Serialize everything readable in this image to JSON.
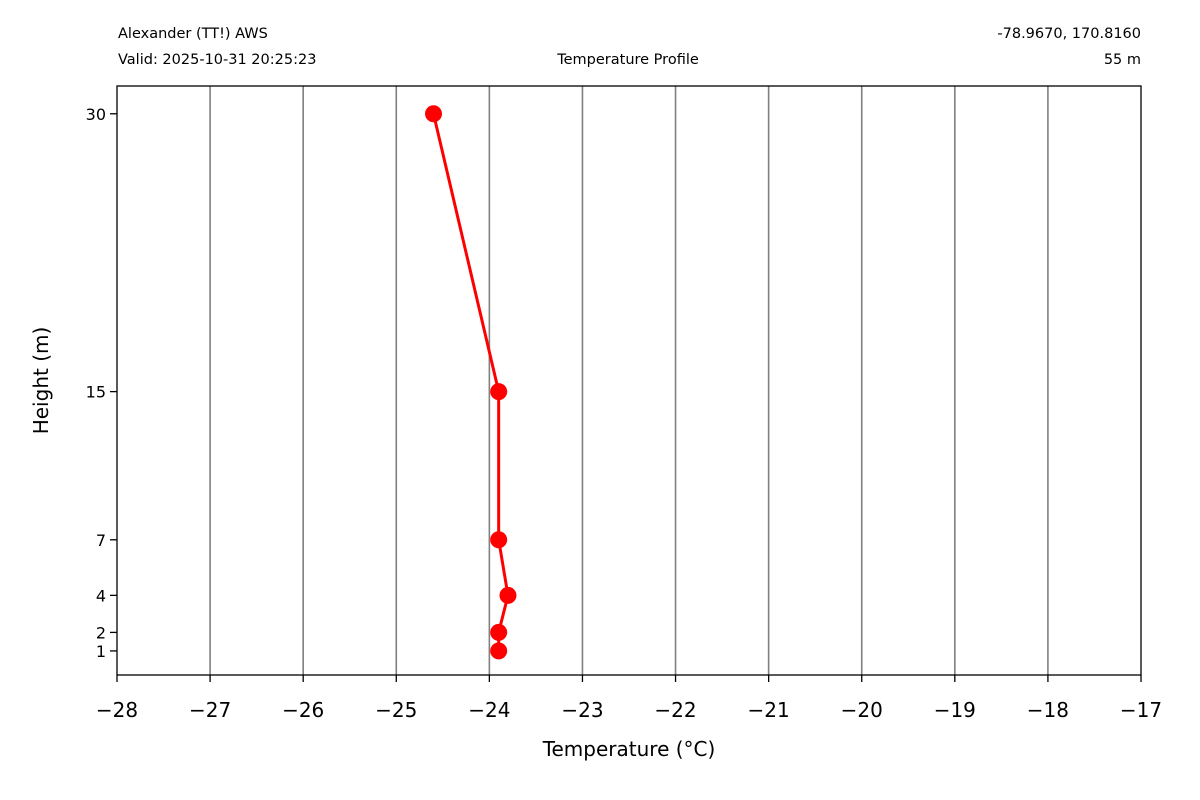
{
  "header": {
    "station": "Alexander (TT!) AWS",
    "valid": "Valid: 2025-10-31 20:25:23",
    "title": "Temperature Profile",
    "coordinates": "-78.9670, 170.8160",
    "elevation": "55 m"
  },
  "chart_data": {
    "type": "line",
    "title": "Temperature Profile",
    "xlabel": "Temperature (°C)",
    "ylabel": "Height (m)",
    "xlim": [
      -28,
      -17
    ],
    "ylim": [
      -0.3,
      31.5
    ],
    "x_ticks": [
      -28,
      -27,
      -26,
      -25,
      -24,
      -23,
      -22,
      -21,
      -20,
      -19,
      -18,
      -17
    ],
    "x_tick_labels": [
      "−28",
      "−27",
      "−26",
      "−25",
      "−24",
      "−23",
      "−22",
      "−21",
      "−20",
      "−19",
      "−18",
      "−17"
    ],
    "y_ticks": [
      1,
      2,
      4,
      7,
      15,
      30
    ],
    "y_tick_labels": [
      "1",
      "2",
      "4",
      "7",
      "15",
      "30"
    ],
    "grid": "vertical",
    "series": [
      {
        "color": "#ff0000",
        "points": [
          {
            "height": 1,
            "temperature": -23.9
          },
          {
            "height": 2,
            "temperature": -23.9
          },
          {
            "height": 4,
            "temperature": -23.8
          },
          {
            "height": 7,
            "temperature": -23.9
          },
          {
            "height": 15,
            "temperature": -23.9
          },
          {
            "height": 30,
            "temperature": -24.6
          }
        ]
      }
    ],
    "grid_color": "#808080"
  }
}
